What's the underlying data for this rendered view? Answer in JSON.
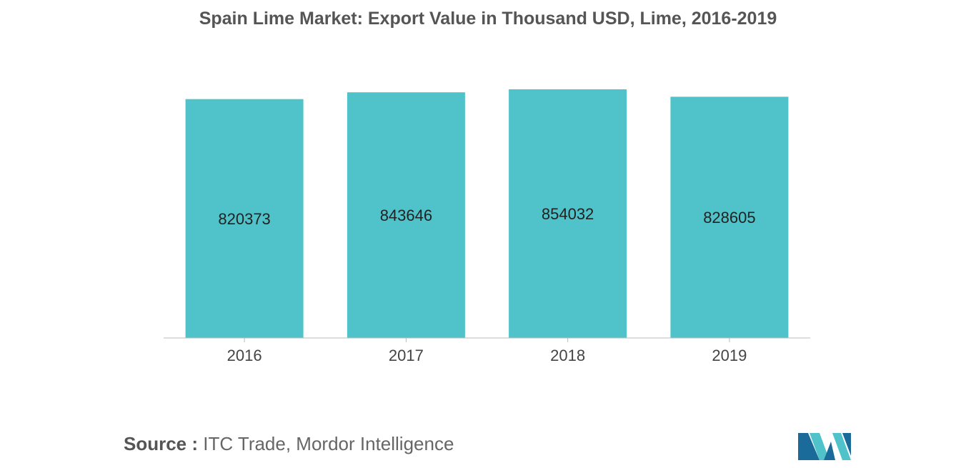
{
  "chart_data": {
    "type": "bar",
    "title": "Spain Lime Market: Export Value in Thousand USD, Lime, 2016-2019",
    "categories": [
      "2016",
      "2017",
      "2018",
      "2019"
    ],
    "values": [
      820373,
      843646,
      854032,
      828605
    ],
    "xlabel": "",
    "ylabel": "",
    "ylim": [
      0,
      854032
    ],
    "grid": false,
    "legend": "none",
    "colors": {
      "bar": "#4fc3c9",
      "axis": "#bbbbbb",
      "label": "#222222",
      "tick": "#444444"
    }
  },
  "source": {
    "label": "Source :",
    "text": "ITC Trade, Mordor Intelligence"
  },
  "logo": {
    "icon": "mordor-intelligence-logo-icon",
    "colors": [
      "#1a6a9a",
      "#4fc3c9"
    ]
  }
}
